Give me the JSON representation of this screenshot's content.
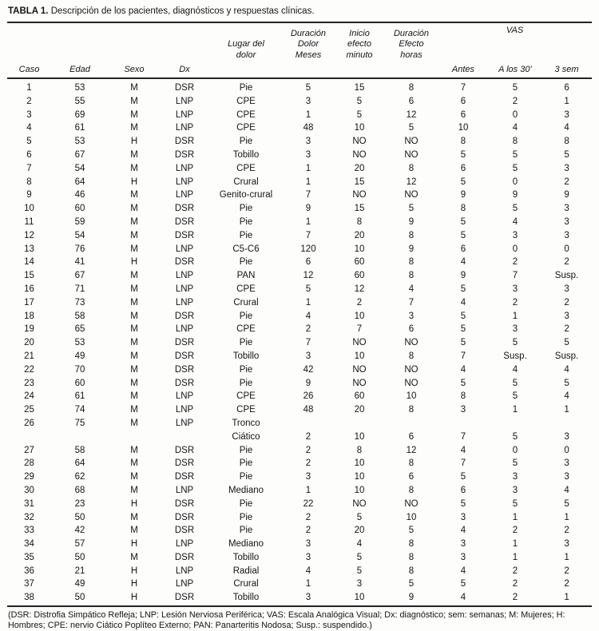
{
  "title": {
    "label": "TABLA 1.",
    "text": "Descripción de los pacientes, diagnósticos y respuestas clínicas."
  },
  "table": {
    "header": {
      "caso": "Caso",
      "edad": "Edad",
      "sexo": "Sexo",
      "dx": "Dx",
      "lugar": "Lugar del\ndolor",
      "dur_dolor": "Duración\nDolor\nMeses",
      "inicio": "Inicio\nefecto\nminuto",
      "dur_efecto": "Duración\nEfecto\nhoras",
      "vas": "VAS",
      "antes": "Antes",
      "a30": "A los 30’",
      "sem3": "3 sem"
    },
    "rows": [
      [
        "1",
        "53",
        "M",
        "DSR",
        "Pie",
        "5",
        "15",
        "8",
        "7",
        "5",
        "6"
      ],
      [
        "2",
        "55",
        "M",
        "LNP",
        "CPE",
        "3",
        "5",
        "6",
        "6",
        "2",
        "1"
      ],
      [
        "3",
        "69",
        "M",
        "LNP",
        "CPE",
        "1",
        "5",
        "12",
        "6",
        "0",
        "3"
      ],
      [
        "4",
        "61",
        "M",
        "LNP",
        "CPE",
        "48",
        "10",
        "5",
        "10",
        "4",
        "4"
      ],
      [
        "5",
        "53",
        "H",
        "DSR",
        "Pie",
        "3",
        "NO",
        "NO",
        "8",
        "8",
        "8"
      ],
      [
        "6",
        "67",
        "M",
        "DSR",
        "Tobillo",
        "3",
        "NO",
        "NO",
        "5",
        "5",
        "5"
      ],
      [
        "7",
        "54",
        "M",
        "LNP",
        "CPE",
        "1",
        "20",
        "8",
        "6",
        "5",
        "3"
      ],
      [
        "8",
        "64",
        "H",
        "LNP",
        "Crural",
        "1",
        "15",
        "12",
        "5",
        "0",
        "2"
      ],
      [
        "9",
        "46",
        "M",
        "LNP",
        "Genito-crural",
        "7",
        "NO",
        "NO",
        "9",
        "9",
        "9"
      ],
      [
        "10",
        "60",
        "M",
        "DSR",
        "Pie",
        "9",
        "15",
        "5",
        "8",
        "5",
        "3"
      ],
      [
        "11",
        "59",
        "M",
        "DSR",
        "Pie",
        "1",
        "8",
        "9",
        "5",
        "4",
        "3"
      ],
      [
        "12",
        "54",
        "M",
        "DSR",
        "Pie",
        "7",
        "20",
        "8",
        "5",
        "3",
        "3"
      ],
      [
        "13",
        "76",
        "M",
        "LNP",
        "C5-C6",
        "120",
        "10",
        "9",
        "6",
        "0",
        "0"
      ],
      [
        "14",
        "41",
        "H",
        "DSR",
        "Pie",
        "6",
        "60",
        "8",
        "4",
        "2",
        "2"
      ],
      [
        "15",
        "67",
        "M",
        "LNP",
        "PAN",
        "12",
        "60",
        "8",
        "9",
        "7",
        "Susp."
      ],
      [
        "16",
        "71",
        "M",
        "LNP",
        "CPE",
        "5",
        "12",
        "4",
        "5",
        "3",
        "3"
      ],
      [
        "17",
        "73",
        "M",
        "LNP",
        "Crural",
        "1",
        "2",
        "7",
        "4",
        "2",
        "2"
      ],
      [
        "18",
        "58",
        "M",
        "DSR",
        "Pie",
        "4",
        "10",
        "3",
        "5",
        "1",
        "3"
      ],
      [
        "19",
        "65",
        "M",
        "LNP",
        "CPE",
        "2",
        "7",
        "6",
        "5",
        "3",
        "2"
      ],
      [
        "20",
        "53",
        "M",
        "DSR",
        "Pie",
        "7",
        "NO",
        "NO",
        "5",
        "5",
        "5"
      ],
      [
        "21",
        "49",
        "M",
        "DSR",
        "Tobillo",
        "3",
        "10",
        "8",
        "7",
        "Susp.",
        "Susp."
      ],
      [
        "22",
        "70",
        "M",
        "DSR",
        "Pie",
        "42",
        "NO",
        "NO",
        "4",
        "4",
        "4"
      ],
      [
        "23",
        "60",
        "M",
        "DSR",
        "Pie",
        "9",
        "NO",
        "NO",
        "5",
        "5",
        "5"
      ],
      [
        "24",
        "61",
        "M",
        "LNP",
        "CPE",
        "26",
        "60",
        "10",
        "8",
        "5",
        "4"
      ],
      [
        "25",
        "74",
        "M",
        "LNP",
        "CPE",
        "48",
        "20",
        "8",
        "3",
        "1",
        "1"
      ],
      [
        "26",
        "75",
        "M",
        "LNP",
        "Tronco\nCiático",
        "2",
        "10",
        "6",
        "7",
        "5",
        "3"
      ],
      [
        "27",
        "58",
        "M",
        "DSR",
        "Pie",
        "2",
        "8",
        "12",
        "4",
        "0",
        "0"
      ],
      [
        "28",
        "64",
        "M",
        "DSR",
        "Pie",
        "2",
        "10",
        "8",
        "7",
        "5",
        "3"
      ],
      [
        "29",
        "62",
        "M",
        "DSR",
        "Pie",
        "3",
        "10",
        "6",
        "5",
        "3",
        "3"
      ],
      [
        "30",
        "68",
        "M",
        "LNP",
        "Mediano",
        "1",
        "10",
        "8",
        "6",
        "3",
        "4"
      ],
      [
        "31",
        "23",
        "H",
        "DSR",
        "Pie",
        "22",
        "NO",
        "NO",
        "5",
        "5",
        "5"
      ],
      [
        "32",
        "50",
        "M",
        "DSR",
        "Pie",
        "2",
        "5",
        "10",
        "3",
        "1",
        "1"
      ],
      [
        "33",
        "42",
        "M",
        "DSR",
        "Pie",
        "2",
        "20",
        "5",
        "4",
        "2",
        "2"
      ],
      [
        "34",
        "57",
        "H",
        "LNP",
        "Mediano",
        "3",
        "4",
        "8",
        "3",
        "1",
        "3"
      ],
      [
        "35",
        "50",
        "M",
        "DSR",
        "Tobillo",
        "3",
        "5",
        "8",
        "3",
        "1",
        "1"
      ],
      [
        "36",
        "21",
        "H",
        "LNP",
        "Radial",
        "4",
        "5",
        "8",
        "4",
        "2",
        "2"
      ],
      [
        "37",
        "49",
        "H",
        "LNP",
        "Crural",
        "1",
        "3",
        "5",
        "5",
        "2",
        "2"
      ],
      [
        "38",
        "50",
        "H",
        "DSR",
        "Tobillo",
        "3",
        "10",
        "9",
        "4",
        "2",
        "1"
      ]
    ]
  },
  "footnote": "(DSR: Distrofia Simpático Refleja; LNP: Lesión Nerviosa Periférica; VAS: Escala Analógica Visual; Dx: diagnóstico; sem: semanas; M: Mujeres; H: Hombres; CPE: nervio Ciático Poplíteo Externo; PAN: Panarteritis Nodosa; Susp.: suspendido.)"
}
